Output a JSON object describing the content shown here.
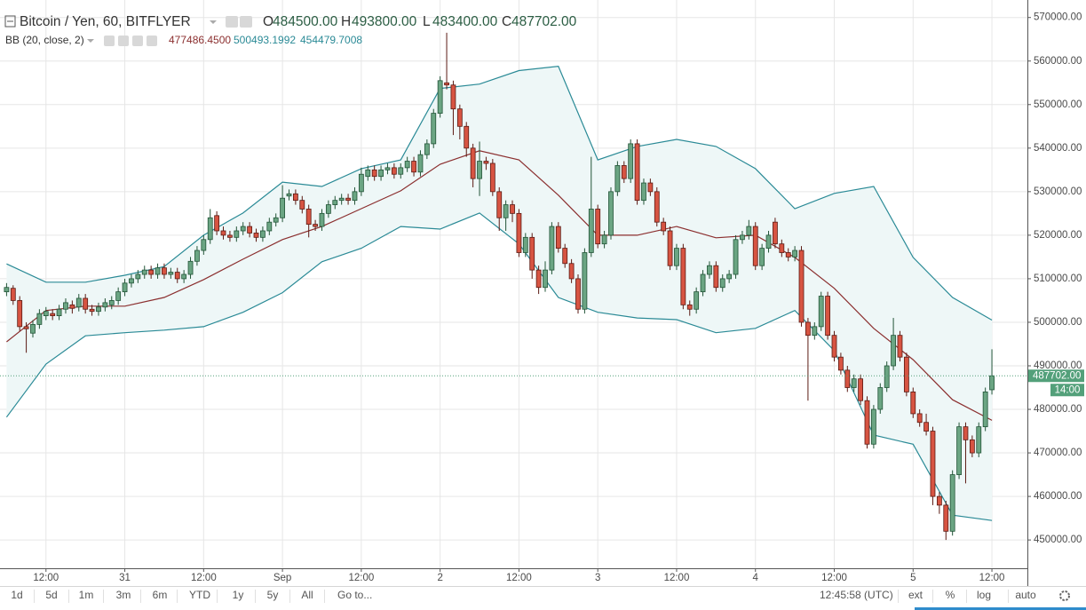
{
  "chart_data": {
    "type": "candlestick",
    "title": "Bitcoin / Yen, 60, BITFLYER",
    "ohlc_legend": [
      {
        "label": "O",
        "value": "484500.00"
      },
      {
        "label": "H",
        "value": "493800.00"
      },
      {
        "label": "L",
        "value": "483400.00"
      },
      {
        "label": "C",
        "value": "487702.00"
      }
    ],
    "indicator": {
      "label": "BB (20, close, 2)",
      "values": [
        "477486.4500",
        "500493.1992",
        "454479.7008"
      ],
      "colors": [
        "#8b2f2f",
        "#2a8a96",
        "#2a8a96"
      ]
    },
    "countdown": "14:00",
    "x": [
      6,
      7,
      8,
      9,
      10,
      11,
      12,
      13,
      14,
      15,
      16,
      17,
      18,
      19,
      20,
      21,
      22,
      23,
      24,
      25,
      26,
      27,
      28,
      29,
      30,
      31,
      32,
      33,
      34,
      35,
      36,
      37,
      38,
      39,
      40,
      41,
      42,
      43,
      44,
      45,
      46,
      47,
      48,
      49,
      50,
      51,
      52,
      53,
      54,
      55,
      56,
      57,
      58,
      59,
      60,
      61,
      62,
      63,
      64,
      65,
      66,
      67,
      68,
      69,
      70,
      71,
      72,
      73,
      74,
      75,
      76,
      77,
      78,
      79,
      80,
      81,
      82,
      83,
      84,
      85,
      86,
      87,
      88,
      89,
      90,
      91,
      92,
      93,
      94,
      95,
      96,
      97,
      98,
      99,
      100,
      101,
      102,
      103,
      104,
      105,
      106,
      107,
      108,
      109,
      110,
      111,
      112,
      113,
      114,
      115,
      116,
      117,
      118,
      119,
      120,
      121,
      122,
      123,
      124,
      125,
      126,
      127,
      128,
      129,
      130,
      131,
      132,
      133,
      134,
      135,
      136,
      137,
      138,
      139,
      140,
      141,
      142,
      143,
      144,
      145,
      146,
      147,
      148,
      149,
      150,
      151,
      152,
      153,
      154,
      155,
      156
    ],
    "open": [
      507000,
      507800,
      505000,
      499000,
      497500,
      499500,
      501500,
      502000,
      501500,
      503000,
      504000,
      503500,
      505500,
      503000,
      502500,
      503500,
      504000,
      505000,
      507000,
      509000,
      510000,
      511000,
      512000,
      511000,
      512500,
      511000,
      511500,
      510000,
      511000,
      514000,
      516500,
      519000,
      524500,
      521000,
      520000,
      519500,
      521000,
      522000,
      520500,
      519500,
      521000,
      523000,
      524000,
      529000,
      529500,
      528000,
      526000,
      522500,
      522000,
      525000,
      527000,
      528000,
      528500,
      528000,
      530000,
      533500,
      535000,
      533500,
      535000,
      535500,
      534000,
      535500,
      537000,
      534500,
      538500,
      541000,
      548000,
      555000,
      554500,
      549000,
      545000,
      540000,
      533000,
      537000,
      536500,
      530000,
      524000,
      527000,
      525000,
      516000,
      519500,
      512000,
      508000,
      512000,
      522000,
      517000,
      513500,
      510000,
      503000,
      516000,
      526000,
      518000,
      520000,
      530000,
      536000,
      533000,
      541000,
      528000,
      532000,
      530000,
      523000,
      521000,
      513000,
      517000,
      504000,
      503000,
      507000,
      511000,
      513000,
      508000,
      510000,
      511000,
      519000,
      520000,
      522000,
      513000,
      517000,
      523000,
      518000,
      516000,
      515000,
      516500,
      500000,
      497000,
      499000,
      506000,
      497000,
      492000,
      489000,
      485000,
      487000,
      482000,
      472000,
      480000,
      485000,
      490000,
      497000,
      492000,
      484000,
      479000,
      477000,
      475000,
      460000,
      458000,
      452000,
      465000,
      476000,
      473000,
      470000,
      476000,
      484500
    ],
    "high": [
      509000,
      508500,
      506000,
      500000,
      500500,
      503000,
      503500,
      503000,
      504000,
      505500,
      505000,
      506500,
      506500,
      504000,
      504500,
      505500,
      506000,
      508000,
      510000,
      511000,
      512000,
      513000,
      513000,
      513500,
      513500,
      512500,
      512500,
      512000,
      515000,
      517500,
      520000,
      526000,
      525500,
      522000,
      521000,
      522000,
      523000,
      523000,
      521500,
      522000,
      524000,
      525000,
      531500,
      530500,
      530500,
      529000,
      527000,
      523500,
      526000,
      528000,
      529000,
      529500,
      529500,
      531000,
      535500,
      536000,
      536000,
      536000,
      536500,
      536500,
      536500,
      538000,
      538000,
      539500,
      542000,
      549000,
      556500,
      566500,
      555500,
      550000,
      546000,
      541000,
      541500,
      538000,
      537500,
      531000,
      528000,
      528000,
      526000,
      520500,
      520500,
      513000,
      514000,
      523000,
      523000,
      518000,
      514500,
      511000,
      517000,
      538000,
      527000,
      521000,
      531000,
      537000,
      537000,
      542000,
      542000,
      533000,
      533000,
      531000,
      524000,
      522000,
      518000,
      518000,
      505000,
      508000,
      512000,
      514000,
      514000,
      511000,
      512000,
      520000,
      521000,
      523500,
      523000,
      518000,
      521000,
      524000,
      519000,
      517000,
      517500,
      517500,
      501000,
      500000,
      507000,
      507000,
      498000,
      493000,
      490000,
      488000,
      488000,
      483000,
      481000,
      486000,
      491000,
      501000,
      498000,
      493000,
      485000,
      480000,
      479000,
      476000,
      461000,
      459000,
      466000,
      477000,
      477000,
      474000,
      477000,
      485000,
      493800
    ],
    "low": [
      506000,
      504000,
      498000,
      493000,
      496500,
      498500,
      500500,
      500500,
      500500,
      502000,
      502000,
      502500,
      502000,
      501500,
      501500,
      502500,
      503000,
      504000,
      506000,
      508000,
      509000,
      510000,
      510000,
      510000,
      510000,
      510000,
      509000,
      509000,
      510000,
      513000,
      515500,
      518000,
      520000,
      519000,
      518500,
      518500,
      520000,
      519500,
      518500,
      518500,
      520000,
      522000,
      523000,
      528000,
      527000,
      525000,
      519500,
      521000,
      521000,
      524000,
      526000,
      527000,
      527000,
      527000,
      529000,
      532500,
      532500,
      532500,
      534000,
      533000,
      533000,
      534500,
      533500,
      533500,
      537500,
      540000,
      547000,
      553500,
      543000,
      542000,
      538000,
      531000,
      529000,
      535000,
      529000,
      521000,
      521000,
      523000,
      515000,
      515000,
      510000,
      506500,
      507000,
      511000,
      516000,
      512500,
      509000,
      502000,
      502000,
      515000,
      517000,
      517000,
      519000,
      529000,
      532000,
      532000,
      527000,
      527000,
      529000,
      522000,
      520000,
      512000,
      512000,
      503000,
      501500,
      502000,
      506000,
      510000,
      507000,
      507000,
      509000,
      510000,
      518000,
      519000,
      512000,
      512000,
      516000,
      517000,
      515000,
      514000,
      514000,
      499000,
      482000,
      496000,
      498000,
      496000,
      491000,
      488000,
      484000,
      484000,
      481000,
      471000,
      471000,
      479000,
      484000,
      489000,
      491000,
      483000,
      478000,
      476000,
      474000,
      458000,
      456000,
      450000,
      451000,
      464000,
      463000,
      469000,
      469000,
      475000,
      483400
    ],
    "close": [
      508000,
      505000,
      499000,
      498500,
      499500,
      502000,
      502500,
      501500,
      503000,
      504500,
      503200,
      505500,
      503000,
      502500,
      503500,
      504500,
      505000,
      507000,
      509000,
      510000,
      511000,
      512000,
      511000,
      512500,
      511000,
      511500,
      510000,
      511000,
      514000,
      516500,
      519000,
      524000,
      521000,
      520000,
      519500,
      521000,
      522000,
      520500,
      519500,
      521000,
      523000,
      524000,
      528500,
      529500,
      528000,
      526000,
      522500,
      522000,
      525000,
      527000,
      528000,
      528500,
      528000,
      530000,
      534000,
      535000,
      533500,
      535000,
      535500,
      534000,
      535500,
      537000,
      534500,
      538500,
      541000,
      548000,
      555500,
      554500,
      549000,
      545000,
      540000,
      533000,
      537000,
      536500,
      530000,
      524000,
      527000,
      525000,
      516000,
      519500,
      512000,
      508000,
      512000,
      522000,
      517000,
      513500,
      510000,
      503000,
      516000,
      526000,
      518000,
      520000,
      530000,
      536000,
      533000,
      541000,
      528000,
      532000,
      530000,
      523000,
      521000,
      513000,
      517000,
      504000,
      503000,
      507000,
      511000,
      513000,
      508000,
      510000,
      511000,
      519000,
      520000,
      522000,
      513000,
      517000,
      520000,
      518000,
      516000,
      515000,
      516500,
      500000,
      497000,
      499000,
      506000,
      497000,
      492000,
      489000,
      485000,
      487000,
      482000,
      472000,
      480000,
      485000,
      490000,
      497000,
      492000,
      484000,
      479000,
      477000,
      475000,
      460000,
      458000,
      452000,
      465000,
      476000,
      473000,
      470000,
      476000,
      484000,
      487702
    ],
    "up_color": "#6ba583",
    "up_border": "#225437",
    "down_color": "#d75442",
    "down_border": "#5b1a13",
    "bands": [
      {
        "color": "#2a8a96",
        "x": [
          6,
          12,
          18,
          24,
          30,
          36,
          42,
          48,
          54,
          60,
          66,
          72,
          78,
          84,
          90,
          96,
          102,
          108,
          114,
          120,
          126,
          132,
          138,
          144,
          150,
          156
        ],
        "values": [
          513400,
          509200,
          509200,
          510800,
          512800,
          520000,
          525100,
          532200,
          531200,
          535300,
          537300,
          553700,
          554700,
          557800,
          558800,
          537300,
          540400,
          542000,
          540400,
          535300,
          526100,
          529600,
          531200,
          514900,
          505700,
          500493
        ]
      },
      {
        "color": "#8b2f2f",
        "x": [
          6,
          12,
          18,
          24,
          30,
          36,
          42,
          48,
          54,
          60,
          66,
          72,
          78,
          84,
          90,
          96,
          102,
          108,
          114,
          120,
          126,
          132,
          138,
          144,
          150,
          156
        ],
        "values": [
          495500,
          502700,
          503700,
          503700,
          505700,
          509800,
          514500,
          519000,
          522000,
          526100,
          530200,
          536300,
          539400,
          537300,
          529200,
          520000,
          520000,
          522000,
          519400,
          520000,
          514900,
          507800,
          498600,
          491400,
          482200,
          477486
        ]
      },
      {
        "color": "#2a8a96",
        "x": [
          6,
          12,
          18,
          24,
          30,
          36,
          42,
          48,
          54,
          60,
          66,
          72,
          78,
          84,
          90,
          96,
          102,
          108,
          114,
          120,
          126,
          132,
          138,
          144,
          150,
          156
        ],
        "values": [
          478200,
          490400,
          496900,
          497600,
          498200,
          499000,
          502300,
          506800,
          513900,
          517000,
          522000,
          521400,
          525100,
          518000,
          505700,
          502300,
          501000,
          500600,
          497600,
          498600,
          502700,
          493500,
          474100,
          472000,
          455700,
          454480
        ]
      }
    ],
    "band_fill": "#eef7f7",
    "last_color": "#53a07a",
    "xlim": [
      5,
      161.4
    ],
    "ylim": [
      443500,
      573000
    ],
    "xticks": [
      {
        "value": 12,
        "label": "12:00"
      },
      {
        "value": 24,
        "label": "31"
      },
      {
        "value": 36,
        "label": "12:00"
      },
      {
        "value": 48,
        "label": "Sep"
      },
      {
        "value": 60,
        "label": "12:00"
      },
      {
        "value": 72,
        "label": "2"
      },
      {
        "value": 84,
        "label": "12:00"
      },
      {
        "value": 96,
        "label": "3"
      },
      {
        "value": 108,
        "label": "12:00"
      },
      {
        "value": 120,
        "label": "4"
      },
      {
        "value": 132,
        "label": "12:00"
      },
      {
        "value": 144,
        "label": "5"
      },
      {
        "value": 156,
        "label": "12:00"
      }
    ],
    "yticks": [
      {
        "value": 450000,
        "label": "450000.00"
      },
      {
        "value": 460000,
        "label": "460000.00"
      },
      {
        "value": 470000,
        "label": "470000.00"
      },
      {
        "value": 480000,
        "label": "480000.00"
      },
      {
        "value": 490000,
        "label": "490000.00"
      },
      {
        "value": 500000,
        "label": "500000.00"
      },
      {
        "value": 510000,
        "label": "510000.00"
      },
      {
        "value": 520000,
        "label": "520000.00"
      },
      {
        "value": 530000,
        "label": "530000.00"
      },
      {
        "value": 540000,
        "label": "540000.00"
      },
      {
        "value": 550000,
        "label": "550000.00"
      },
      {
        "value": 560000,
        "label": "560000.00"
      },
      {
        "value": 570000,
        "label": "570000.00"
      }
    ],
    "grid": true
  },
  "toolbar": {
    "ranges": [
      "1d",
      "5d",
      "1m",
      "3m",
      "6m",
      "YTD",
      "1y",
      "5y",
      "All"
    ],
    "goto": "Go to...",
    "clock": "12:45:58 (UTC)",
    "options": [
      "ext",
      "%",
      "log",
      "auto"
    ]
  }
}
